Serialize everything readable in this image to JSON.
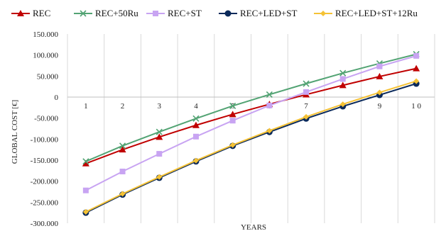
{
  "chart_data": {
    "type": "line",
    "title": "",
    "xlabel": "YEARS",
    "ylabel": "GLOBAL COST [€]",
    "x": [
      1,
      2,
      3,
      4,
      5,
      6,
      7,
      8,
      9,
      10
    ],
    "x_tick_labels": [
      "1",
      "2",
      "3",
      "4",
      "5",
      "6",
      "7",
      "8",
      "9",
      "1 0"
    ],
    "ylim": [
      -300000,
      150000
    ],
    "y_ticks": [
      150000,
      100000,
      50000,
      0,
      -50000,
      -100000,
      -150000,
      -200000,
      -250000,
      -300000
    ],
    "y_tick_labels": [
      "150.000",
      "100.000",
      "50.000",
      "0",
      "-50.000",
      "-100.000",
      "-150.000",
      "-200.000",
      "-250.000",
      "-300.000"
    ],
    "grid": "vertical",
    "legend_position": "top",
    "series": [
      {
        "name": "REC",
        "color": "#c00000",
        "marker": "triangle",
        "values": [
          -158000,
          -125000,
          -95000,
          -67000,
          -41000,
          -17000,
          6000,
          28000,
          49000,
          68000
        ]
      },
      {
        "name": "REC+50Ru",
        "color": "#52a373",
        "marker": "x",
        "values": [
          -153000,
          -116000,
          -83000,
          -51000,
          -21000,
          6000,
          32000,
          57000,
          80000,
          102000
        ]
      },
      {
        "name": "REC+ST",
        "color": "#c8a4f2",
        "marker": "square",
        "values": [
          -222000,
          -177000,
          -135000,
          -94000,
          -56000,
          -20000,
          12000,
          43000,
          73000,
          98000
        ]
      },
      {
        "name": "REC+LED+ST",
        "color": "#0b2a5b",
        "marker": "circle",
        "values": [
          -275000,
          -232000,
          -192000,
          -153000,
          -116000,
          -83000,
          -51000,
          -22000,
          5000,
          32000
        ]
      },
      {
        "name": "REC+LED+ST+12Ru",
        "color": "#f5c235",
        "marker": "diamond",
        "values": [
          -273000,
          -230000,
          -190000,
          -151000,
          -114000,
          -80000,
          -47000,
          -17000,
          11000,
          38000
        ]
      }
    ]
  }
}
